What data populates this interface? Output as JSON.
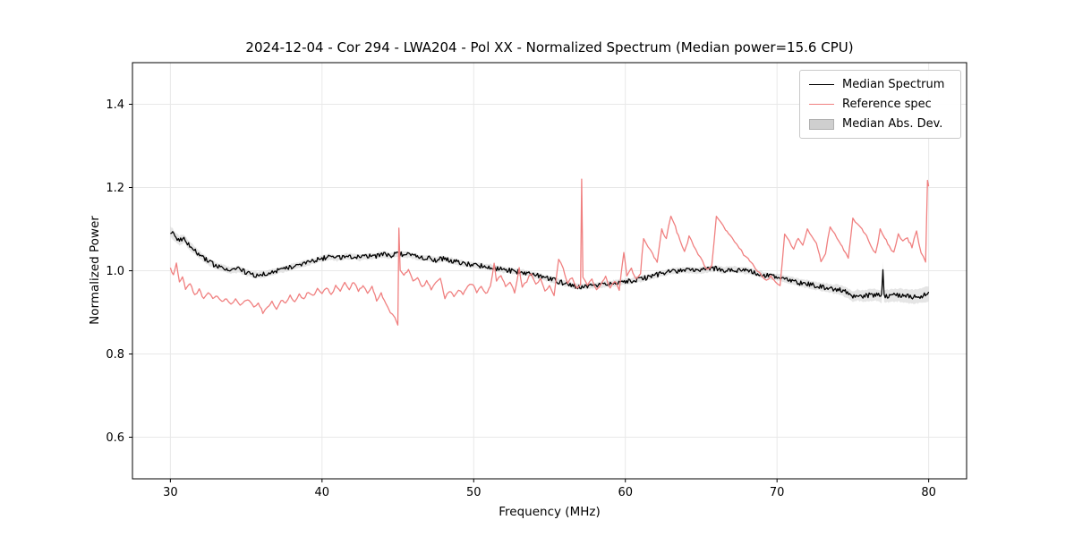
{
  "chart_data": {
    "type": "line",
    "title": "2024-12-04 - Cor 294 - LWA204 - Pol XX - Normalized Spectrum (Median power=15.6 CPU)",
    "xlabel": "Frequency (MHz)",
    "ylabel": "Normalized Power",
    "xlim": [
      27.5,
      82.5
    ],
    "ylim": [
      0.5,
      1.5
    ],
    "x_ticks": [
      30,
      40,
      50,
      60,
      70,
      80
    ],
    "x_tick_labels": [
      "30",
      "40",
      "50",
      "60",
      "70",
      "80"
    ],
    "y_ticks": [
      0.6,
      0.8,
      1.0,
      1.2,
      1.4
    ],
    "y_tick_labels": [
      "0.6",
      "0.8",
      "1.0",
      "1.2",
      "1.4"
    ],
    "grid": true,
    "legend_position": "upper right",
    "colors": {
      "grid": "#e8e8e8",
      "frame": "#000000",
      "background": "#ffffff",
      "mad_fill": "#cfcfcf",
      "mad_edge": "#b0b0b0"
    },
    "legend": [
      {
        "label": "Median Spectrum",
        "type": "line"
      },
      {
        "label": "Reference spec",
        "type": "line"
      },
      {
        "label": "Median Abs. Dev.",
        "type": "patch"
      }
    ],
    "series": [
      {
        "name": "Median Spectrum",
        "color": "#000000",
        "noise": 0.006,
        "points": [
          [
            30,
            1.095
          ],
          [
            30.3,
            1.082
          ],
          [
            30.6,
            1.072
          ],
          [
            30.9,
            1.078
          ],
          [
            31.2,
            1.062
          ],
          [
            31.5,
            1.052
          ],
          [
            32,
            1.036
          ],
          [
            32.5,
            1.022
          ],
          [
            33,
            1.012
          ],
          [
            33.5,
            1.006
          ],
          [
            34,
            1.0
          ],
          [
            34.5,
            1.004
          ],
          [
            35,
            0.996
          ],
          [
            35.5,
            0.99
          ],
          [
            36,
            0.99
          ],
          [
            36.5,
            0.994
          ],
          [
            37,
            1.0
          ],
          [
            37.5,
            1.004
          ],
          [
            38,
            1.009
          ],
          [
            38.5,
            1.014
          ],
          [
            39,
            1.019
          ],
          [
            39.5,
            1.024
          ],
          [
            40,
            1.029
          ],
          [
            40.5,
            1.034
          ],
          [
            41,
            1.03
          ],
          [
            41.5,
            1.034
          ],
          [
            42,
            1.035
          ],
          [
            42.5,
            1.031
          ],
          [
            43,
            1.034
          ],
          [
            43.5,
            1.035
          ],
          [
            44,
            1.039
          ],
          [
            44.5,
            1.036
          ],
          [
            45,
            1.04
          ],
          [
            45.5,
            1.039
          ],
          [
            46,
            1.036
          ],
          [
            46.5,
            1.031
          ],
          [
            47,
            1.03
          ],
          [
            47.5,
            1.026
          ],
          [
            48,
            1.029
          ],
          [
            48.5,
            1.024
          ],
          [
            49,
            1.02
          ],
          [
            49.5,
            1.016
          ],
          [
            50,
            1.014
          ],
          [
            50.5,
            1.011
          ],
          [
            51,
            1.009
          ],
          [
            51.5,
            1.005
          ],
          [
            52,
            1.002
          ],
          [
            52.5,
            1.0
          ],
          [
            53,
            0.997
          ],
          [
            53.5,
            0.994
          ],
          [
            54,
            0.99
          ],
          [
            54.5,
            0.985
          ],
          [
            55,
            0.98
          ],
          [
            55.5,
            0.975
          ],
          [
            56,
            0.97
          ],
          [
            56.5,
            0.965
          ],
          [
            57,
            0.961
          ],
          [
            57.5,
            0.962
          ],
          [
            58,
            0.965
          ],
          [
            58.5,
            0.967
          ],
          [
            59,
            0.969
          ],
          [
            59.5,
            0.971
          ],
          [
            60,
            0.974
          ],
          [
            60.5,
            0.977
          ],
          [
            61,
            0.98
          ],
          [
            61.5,
            0.984
          ],
          [
            62,
            0.989
          ],
          [
            62.5,
            0.994
          ],
          [
            63,
            0.999
          ],
          [
            63.5,
            1.0
          ],
          [
            64,
            1.002
          ],
          [
            64.5,
            1.0
          ],
          [
            65,
            1.001
          ],
          [
            65.5,
            1.004
          ],
          [
            66,
            1.005
          ],
          [
            66.5,
            1.001
          ],
          [
            67,
            1.004
          ],
          [
            67.5,
            1.001
          ],
          [
            68,
            1.0
          ],
          [
            68.5,
            0.996
          ],
          [
            69,
            0.991
          ],
          [
            69.5,
            0.987
          ],
          [
            70,
            0.985
          ],
          [
            70.5,
            0.98
          ],
          [
            71,
            0.976
          ],
          [
            71.5,
            0.971
          ],
          [
            72,
            0.968
          ],
          [
            72.5,
            0.964
          ],
          [
            73,
            0.961
          ],
          [
            73.5,
            0.958
          ],
          [
            74,
            0.955
          ],
          [
            74.5,
            0.949
          ],
          [
            75,
            0.938
          ],
          [
            75.3,
            0.942
          ],
          [
            75.6,
            0.939
          ],
          [
            76,
            0.941
          ],
          [
            76.5,
            0.942
          ],
          [
            76.9,
            0.939
          ],
          [
            76.98,
            1.008
          ],
          [
            77.06,
            0.939
          ],
          [
            77.5,
            0.94
          ],
          [
            78,
            0.942
          ],
          [
            78.5,
            0.939
          ],
          [
            79,
            0.937
          ],
          [
            79.5,
            0.94
          ],
          [
            80,
            0.945
          ]
        ]
      },
      {
        "name": "Reference spec",
        "color": "#f08080",
        "noise": 0.003,
        "points": [
          [
            30,
            1.005
          ],
          [
            30.2,
            0.99
          ],
          [
            30.4,
            1.018
          ],
          [
            30.6,
            0.975
          ],
          [
            30.8,
            0.985
          ],
          [
            31,
            0.955
          ],
          [
            31.3,
            0.97
          ],
          [
            31.6,
            0.94
          ],
          [
            31.9,
            0.955
          ],
          [
            32.2,
            0.932
          ],
          [
            32.5,
            0.945
          ],
          [
            32.8,
            0.935
          ],
          [
            33.1,
            0.94
          ],
          [
            33.4,
            0.925
          ],
          [
            33.7,
            0.935
          ],
          [
            34,
            0.92
          ],
          [
            34.3,
            0.93
          ],
          [
            34.6,
            0.916
          ],
          [
            34.9,
            0.925
          ],
          [
            35.2,
            0.93
          ],
          [
            35.5,
            0.91
          ],
          [
            35.8,
            0.92
          ],
          [
            36.1,
            0.9
          ],
          [
            36.4,
            0.915
          ],
          [
            36.7,
            0.924
          ],
          [
            37,
            0.91
          ],
          [
            37.3,
            0.93
          ],
          [
            37.6,
            0.92
          ],
          [
            37.9,
            0.94
          ],
          [
            38.2,
            0.926
          ],
          [
            38.5,
            0.944
          ],
          [
            38.8,
            0.93
          ],
          [
            39.1,
            0.95
          ],
          [
            39.4,
            0.94
          ],
          [
            39.7,
            0.955
          ],
          [
            40,
            0.945
          ],
          [
            40.3,
            0.96
          ],
          [
            40.6,
            0.941
          ],
          [
            40.9,
            0.964
          ],
          [
            41.2,
            0.95
          ],
          [
            41.5,
            0.97
          ],
          [
            41.8,
            0.955
          ],
          [
            42.1,
            0.974
          ],
          [
            42.4,
            0.95
          ],
          [
            42.7,
            0.965
          ],
          [
            43,
            0.945
          ],
          [
            43.3,
            0.96
          ],
          [
            43.6,
            0.93
          ],
          [
            43.9,
            0.945
          ],
          [
            44.2,
            0.92
          ],
          [
            44.5,
            0.9
          ],
          [
            44.8,
            0.885
          ],
          [
            45,
            0.872
          ],
          [
            45.07,
            1.105
          ],
          [
            45.15,
            1.0
          ],
          [
            45.4,
            0.99
          ],
          [
            45.7,
            1.0
          ],
          [
            46,
            0.975
          ],
          [
            46.3,
            0.986
          ],
          [
            46.6,
            0.96
          ],
          [
            46.9,
            0.975
          ],
          [
            47.2,
            0.955
          ],
          [
            47.5,
            0.97
          ],
          [
            47.8,
            0.98
          ],
          [
            48.1,
            0.935
          ],
          [
            48.4,
            0.95
          ],
          [
            48.7,
            0.94
          ],
          [
            49,
            0.955
          ],
          [
            49.3,
            0.945
          ],
          [
            49.6,
            0.96
          ],
          [
            49.9,
            0.97
          ],
          [
            50.2,
            0.95
          ],
          [
            50.5,
            0.965
          ],
          [
            50.8,
            0.945
          ],
          [
            51.1,
            0.96
          ],
          [
            51.35,
            1.02
          ],
          [
            51.5,
            0.975
          ],
          [
            51.8,
            0.99
          ],
          [
            52.1,
            0.96
          ],
          [
            52.4,
            0.975
          ],
          [
            52.7,
            0.945
          ],
          [
            53,
            1.005
          ],
          [
            53.2,
            0.96
          ],
          [
            53.5,
            0.975
          ],
          [
            53.8,
            0.995
          ],
          [
            54.1,
            0.965
          ],
          [
            54.4,
            0.98
          ],
          [
            54.7,
            0.95
          ],
          [
            55,
            0.965
          ],
          [
            55.3,
            0.94
          ],
          [
            55.6,
            1.03
          ],
          [
            55.9,
            1.005
          ],
          [
            56.2,
            0.97
          ],
          [
            56.5,
            0.985
          ],
          [
            56.8,
            0.955
          ],
          [
            57.05,
            0.97
          ],
          [
            57.12,
            1.22
          ],
          [
            57.2,
            0.985
          ],
          [
            57.5,
            0.965
          ],
          [
            57.8,
            0.98
          ],
          [
            58.1,
            0.955
          ],
          [
            58.4,
            0.97
          ],
          [
            58.7,
            0.985
          ],
          [
            59,
            0.96
          ],
          [
            59.3,
            0.975
          ],
          [
            59.6,
            0.955
          ],
          [
            59.9,
            1.045
          ],
          [
            60.1,
            0.99
          ],
          [
            60.4,
            1.005
          ],
          [
            60.7,
            0.98
          ],
          [
            61,
            0.995
          ],
          [
            61.2,
            1.08
          ],
          [
            61.5,
            1.058
          ],
          [
            61.8,
            1.04
          ],
          [
            62.1,
            1.022
          ],
          [
            62.4,
            1.098
          ],
          [
            62.7,
            1.078
          ],
          [
            63,
            1.13
          ],
          [
            63.3,
            1.105
          ],
          [
            63.6,
            1.072
          ],
          [
            63.9,
            1.046
          ],
          [
            64.2,
            1.082
          ],
          [
            64.5,
            1.06
          ],
          [
            64.8,
            1.04
          ],
          [
            65.1,
            1.022
          ],
          [
            65.4,
            1.002
          ],
          [
            65.7,
            1.012
          ],
          [
            66,
            1.132
          ],
          [
            66.3,
            1.115
          ],
          [
            66.6,
            1.098
          ],
          [
            66.9,
            1.085
          ],
          [
            67.2,
            1.07
          ],
          [
            67.5,
            1.055
          ],
          [
            67.8,
            1.04
          ],
          [
            68.1,
            1.028
          ],
          [
            68.4,
            1.015
          ],
          [
            68.7,
            1.0
          ],
          [
            69,
            0.99
          ],
          [
            69.3,
            0.977
          ],
          [
            69.6,
            0.986
          ],
          [
            69.9,
            0.97
          ],
          [
            70.2,
            0.962
          ],
          [
            70.5,
            1.088
          ],
          [
            70.8,
            1.07
          ],
          [
            71.1,
            1.052
          ],
          [
            71.4,
            1.078
          ],
          [
            71.7,
            1.06
          ],
          [
            72,
            1.098
          ],
          [
            72.3,
            1.083
          ],
          [
            72.6,
            1.068
          ],
          [
            72.9,
            1.02
          ],
          [
            73.2,
            1.042
          ],
          [
            73.5,
            1.108
          ],
          [
            73.8,
            1.09
          ],
          [
            74.1,
            1.072
          ],
          [
            74.4,
            1.052
          ],
          [
            74.7,
            1.032
          ],
          [
            75,
            1.128
          ],
          [
            75.3,
            1.112
          ],
          [
            75.6,
            1.098
          ],
          [
            75.9,
            1.082
          ],
          [
            76.2,
            1.06
          ],
          [
            76.5,
            1.04
          ],
          [
            76.8,
            1.098
          ],
          [
            77.1,
            1.08
          ],
          [
            77.4,
            1.06
          ],
          [
            77.7,
            1.042
          ],
          [
            78,
            1.088
          ],
          [
            78.3,
            1.07
          ],
          [
            78.6,
            1.078
          ],
          [
            78.9,
            1.058
          ],
          [
            79.2,
            1.098
          ],
          [
            79.5,
            1.04
          ],
          [
            79.8,
            1.022
          ],
          [
            79.92,
            1.215
          ],
          [
            80,
            1.2
          ]
        ]
      }
    ],
    "mad_band": {
      "name": "Median Abs. Dev.",
      "halfwidth_points": [
        [
          30,
          0.013
        ],
        [
          31,
          0.01
        ],
        [
          33,
          0.008
        ],
        [
          40,
          0.007
        ],
        [
          50,
          0.007
        ],
        [
          60,
          0.007
        ],
        [
          70,
          0.008
        ],
        [
          73,
          0.01
        ],
        [
          75,
          0.013
        ],
        [
          77,
          0.015
        ],
        [
          79,
          0.017
        ],
        [
          80,
          0.018
        ]
      ]
    }
  }
}
